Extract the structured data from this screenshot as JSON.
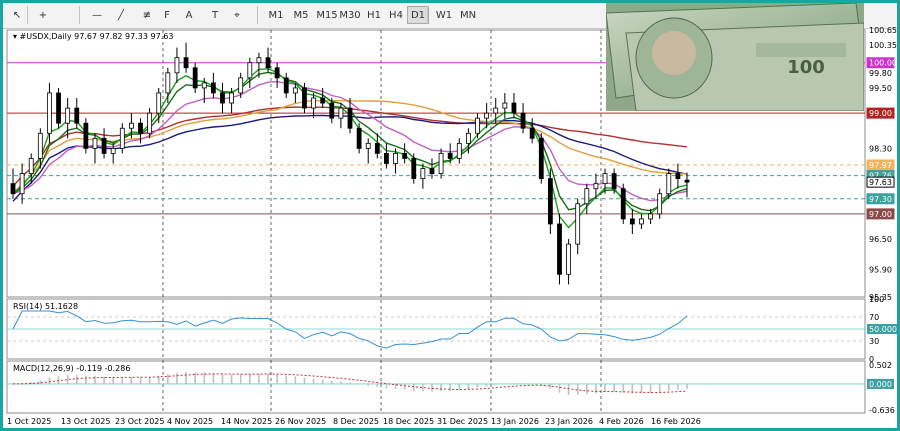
{
  "toolbar": {
    "tools": [
      {
        "name": "cursor-icon",
        "glyph": "↖"
      },
      {
        "name": "crosshair-icon",
        "glyph": "+"
      },
      {
        "name": "horizontal-line-icon",
        "glyph": "—"
      },
      {
        "name": "trendline-icon",
        "glyph": "╱"
      },
      {
        "name": "equidistant-channel-icon",
        "glyph": "≢"
      },
      {
        "name": "fibonacci-icon",
        "glyph": "F"
      },
      {
        "name": "text-icon",
        "glyph": "A"
      },
      {
        "name": "text-label-icon",
        "glyph": "T"
      },
      {
        "name": "shapes-icon",
        "glyph": "⌖"
      }
    ],
    "timeframes": [
      "M1",
      "M5",
      "M15",
      "M30",
      "H1",
      "H4",
      "D1",
      "W1",
      "MN"
    ],
    "active_timeframe": "D1"
  },
  "chart": {
    "symbol_info": "#USDX,Daily  97.67 97.82 97.33 97.63",
    "rsi_label": "RSI(14) 51.1628",
    "macd_label": "MACD(12,26,9) -0.119 -0.286",
    "price_axis": [
      "100.65",
      "100.35",
      "99.80",
      "99.50",
      "98.95",
      "98.30",
      "97.65",
      "97.30",
      "96.50",
      "95.90",
      "95.35"
    ],
    "price_tags": [
      {
        "text": "100.00",
        "value": 100.0,
        "bg": "#cc33cc",
        "fg": "#ffffff"
      },
      {
        "text": "99.00",
        "value": 99.0,
        "bg": "#b22222",
        "fg": "#ffffff"
      },
      {
        "text": "97.97",
        "value": 97.97,
        "bg": "#f2b45a",
        "fg": "#ffffff"
      },
      {
        "text": "97.76",
        "value": 97.76,
        "bg": "#3aa0a0",
        "fg": "#ffffff"
      },
      {
        "text": "97.63",
        "value": 97.63,
        "bg": "#ffffff",
        "fg": "#000000"
      },
      {
        "text": "97.30",
        "value": 97.3,
        "bg": "#3aa0a0",
        "fg": "#ffffff"
      },
      {
        "text": "97.00",
        "value": 97.0,
        "bg": "#8b4a4a",
        "fg": "#ffffff"
      }
    ],
    "rsi_axis": [
      "100",
      "70",
      "30",
      "0"
    ],
    "rsi_level_tag": "50.0000",
    "macd_axis": [
      "0.502",
      "-0.636"
    ],
    "macd_zero_tag": "0.000",
    "date_labels": [
      "1 Oct 2025",
      "13 Oct 2025",
      "23 Oct 2025",
      "4 Nov 2025",
      "14 Nov 2025",
      "26 Nov 2025",
      "8 Dec 2025",
      "18 Dec 2025",
      "31 Dec 2025",
      "13 Jan 2026",
      "23 Jan 2026",
      "4 Feb 2026",
      "16 Feb 2026"
    ],
    "colors": {
      "up_candle": "#ffffff",
      "down_candle": "#000000",
      "ema_fast": "#1e9e1e",
      "ema_mid": "#176e17",
      "ma_purple": "#c060c0",
      "ma_orange": "#e0a040",
      "ma_navy": "#1a1a80",
      "ma_red": "#b03030",
      "rsi_line": "#3a8fd0",
      "macd_hist": "#c0c0c0",
      "macd_signal": "#c03030",
      "accent": "#1aa5a0"
    }
  },
  "chart_data": {
    "type": "candlestick",
    "ylim": [
      95.35,
      100.65
    ],
    "candles": [
      [
        97.6,
        97.9,
        97.3,
        97.4
      ],
      [
        97.4,
        98.0,
        97.2,
        97.8
      ],
      [
        97.8,
        98.2,
        97.6,
        98.1
      ],
      [
        98.1,
        98.7,
        97.9,
        98.6
      ],
      [
        98.6,
        99.6,
        98.4,
        99.4
      ],
      [
        99.4,
        99.5,
        98.7,
        98.8
      ],
      [
        98.8,
        99.3,
        98.5,
        99.1
      ],
      [
        99.1,
        99.3,
        98.7,
        98.8
      ],
      [
        98.8,
        98.9,
        98.2,
        98.3
      ],
      [
        98.3,
        98.6,
        98.0,
        98.5
      ],
      [
        98.5,
        98.7,
        98.1,
        98.2
      ],
      [
        98.2,
        98.4,
        98.0,
        98.3
      ],
      [
        98.3,
        98.8,
        98.2,
        98.7
      ],
      [
        98.7,
        99.0,
        98.5,
        98.8
      ],
      [
        98.8,
        98.9,
        98.4,
        98.6
      ],
      [
        98.6,
        99.1,
        98.5,
        99.0
      ],
      [
        99.0,
        99.5,
        98.8,
        99.4
      ],
      [
        99.4,
        99.9,
        99.2,
        99.8
      ],
      [
        99.8,
        100.3,
        99.6,
        100.1
      ],
      [
        100.1,
        100.4,
        99.8,
        99.9
      ],
      [
        99.9,
        100.0,
        99.4,
        99.5
      ],
      [
        99.5,
        99.7,
        99.2,
        99.6
      ],
      [
        99.6,
        99.8,
        99.3,
        99.4
      ],
      [
        99.4,
        99.6,
        99.0,
        99.2
      ],
      [
        99.2,
        99.5,
        99.0,
        99.4
      ],
      [
        99.4,
        99.8,
        99.3,
        99.7
      ],
      [
        99.7,
        100.1,
        99.5,
        100.0
      ],
      [
        100.0,
        100.2,
        99.7,
        100.1
      ],
      [
        100.1,
        100.3,
        99.8,
        99.9
      ],
      [
        99.9,
        100.0,
        99.5,
        99.7
      ],
      [
        99.7,
        99.8,
        99.3,
        99.4
      ],
      [
        99.4,
        99.6,
        99.2,
        99.5
      ],
      [
        99.5,
        99.6,
        99.0,
        99.1
      ],
      [
        99.1,
        99.4,
        98.9,
        99.3
      ],
      [
        99.3,
        99.5,
        99.1,
        99.2
      ],
      [
        99.2,
        99.3,
        98.8,
        98.9
      ],
      [
        98.9,
        99.2,
        98.7,
        99.1
      ],
      [
        99.1,
        99.3,
        98.6,
        98.7
      ],
      [
        98.7,
        98.8,
        98.2,
        98.3
      ],
      [
        98.3,
        98.5,
        98.0,
        98.4
      ],
      [
        98.4,
        98.6,
        98.1,
        98.2
      ],
      [
        98.2,
        98.4,
        97.9,
        98.0
      ],
      [
        98.0,
        98.3,
        97.8,
        98.2
      ],
      [
        98.2,
        98.4,
        98.0,
        98.1
      ],
      [
        98.1,
        98.2,
        97.6,
        97.7
      ],
      [
        97.7,
        98.0,
        97.5,
        97.9
      ],
      [
        97.9,
        98.1,
        97.7,
        97.8
      ],
      [
        97.8,
        98.3,
        97.7,
        98.2
      ],
      [
        98.2,
        98.4,
        98.0,
        98.1
      ],
      [
        98.1,
        98.5,
        98.0,
        98.4
      ],
      [
        98.4,
        98.7,
        98.2,
        98.6
      ],
      [
        98.6,
        99.0,
        98.5,
        98.9
      ],
      [
        98.9,
        99.2,
        98.7,
        99.0
      ],
      [
        99.0,
        99.3,
        98.8,
        99.1
      ],
      [
        99.1,
        99.4,
        98.9,
        99.2
      ],
      [
        99.2,
        99.4,
        98.9,
        99.0
      ],
      [
        99.0,
        99.2,
        98.6,
        98.7
      ],
      [
        98.7,
        98.9,
        98.4,
        98.5
      ],
      [
        98.5,
        98.6,
        97.6,
        97.7
      ],
      [
        97.7,
        97.9,
        96.6,
        96.8
      ],
      [
        96.8,
        97.0,
        95.6,
        95.8
      ],
      [
        95.8,
        96.5,
        95.6,
        96.4
      ],
      [
        96.4,
        97.3,
        96.2,
        97.2
      ],
      [
        97.2,
        97.6,
        97.0,
        97.5
      ],
      [
        97.5,
        97.8,
        97.3,
        97.6
      ],
      [
        97.6,
        97.9,
        97.4,
        97.8
      ],
      [
        97.8,
        97.9,
        97.4,
        97.5
      ],
      [
        97.5,
        97.6,
        96.8,
        96.9
      ],
      [
        96.9,
        97.1,
        96.6,
        96.8
      ],
      [
        96.8,
        97.0,
        96.7,
        96.9
      ],
      [
        96.9,
        97.1,
        96.8,
        97.0
      ],
      [
        97.0,
        97.5,
        96.9,
        97.4
      ],
      [
        97.4,
        97.9,
        97.3,
        97.8
      ],
      [
        97.8,
        98.0,
        97.5,
        97.7
      ],
      [
        97.67,
        97.82,
        97.33,
        97.63
      ]
    ],
    "horizontal_levels": [
      100.0,
      99.0,
      97.97,
      97.76,
      97.3,
      97.0
    ]
  }
}
